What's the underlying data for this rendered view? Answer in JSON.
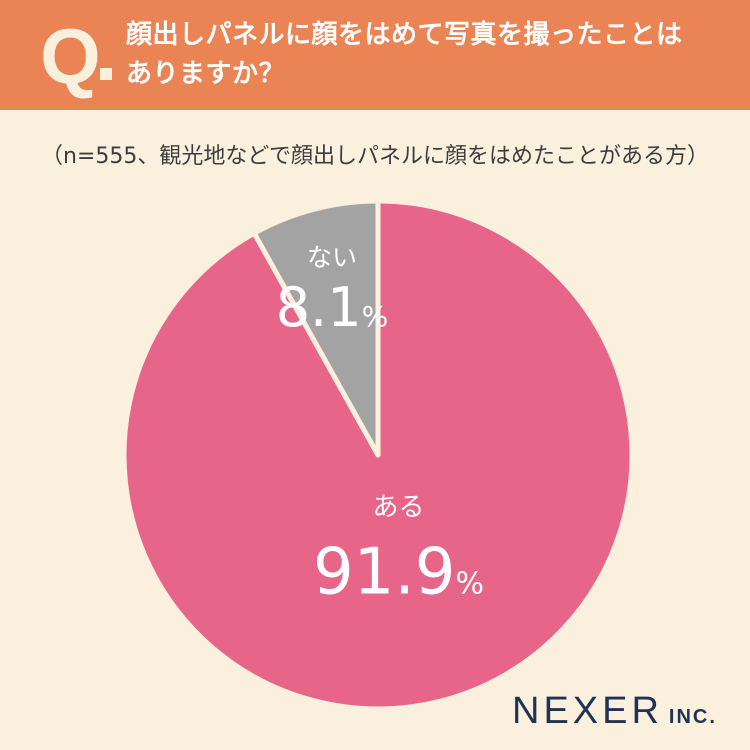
{
  "header": {
    "q_letter": "Q",
    "question_line1": "顔出しパネルに顔をはめて写真を撮ったことは",
    "question_line2": "ありますか？"
  },
  "note": "（n=555、観光地などで顔出しパネルに顔をはめたことがある方）",
  "brand": {
    "name": "NEXER",
    "suffix": "INC."
  },
  "colors": {
    "header_bg": "#ea8455",
    "page_bg": "#fbf0de",
    "yes_slice": "#e8658a",
    "no_slice": "#a3a3a3",
    "brand": "#1f3354"
  },
  "chart_data": {
    "type": "pie",
    "slices": [
      {
        "label": "ある",
        "value": 91.9,
        "display": "91.9",
        "unit": "%",
        "color": "#e8658a"
      },
      {
        "label": "ない",
        "value": 8.1,
        "display": "8.1",
        "unit": "%",
        "color": "#a3a3a3"
      }
    ]
  }
}
